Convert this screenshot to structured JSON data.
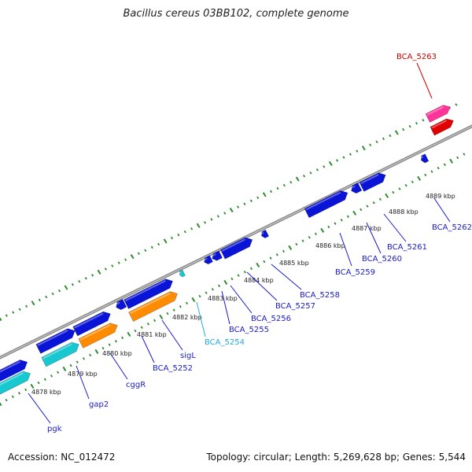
{
  "title": "Bacillus cereus 03BB102, complete genome",
  "footer": {
    "accession": "Accession: NC_012472",
    "summary": "Topology: circular; Length: 5,269,628 bp; Genes: 5,544"
  },
  "colors": {
    "backbone": "#8c8c8c",
    "tick": "#2e8b2e",
    "cds": "#0a14d6",
    "trna_cyan": "#18c8d0",
    "orange": "#ff8c00",
    "pink": "#ff3399",
    "red": "#e00000",
    "label_default": "#1a1acc",
    "label_sigL": "#22aadd",
    "label_BCA_5263": "#cc0000"
  },
  "ticks": [
    {
      "label": "4878 kbp"
    },
    {
      "label": "4879 kbp"
    },
    {
      "label": "4880 kbp"
    },
    {
      "label": "4881 kbp"
    },
    {
      "label": "4882 kbp"
    },
    {
      "label": "4883 kbp"
    },
    {
      "label": "4884 kbp"
    },
    {
      "label": "4885 kbp"
    },
    {
      "label": "4886 kbp"
    },
    {
      "label": "4887 kbp"
    },
    {
      "label": "4888 kbp"
    },
    {
      "label": "4889 kbp"
    }
  ],
  "genes": [
    {
      "label": "pgk"
    },
    {
      "label": "gap2"
    },
    {
      "label": "cggR"
    },
    {
      "label": "BCA_5252"
    },
    {
      "label": "sigL"
    },
    {
      "label": "BCA_5254"
    },
    {
      "label": "BCA_5255"
    },
    {
      "label": "BCA_5256"
    },
    {
      "label": "BCA_5257"
    },
    {
      "label": "BCA_5258"
    },
    {
      "label": "BCA_5259"
    },
    {
      "label": "BCA_5260"
    },
    {
      "label": "BCA_5261"
    },
    {
      "label": "BCA_5262"
    },
    {
      "label": "BCA_5263"
    }
  ]
}
